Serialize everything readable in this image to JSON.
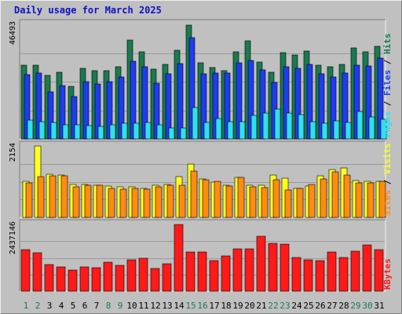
{
  "title": "Daily usage for March 2025",
  "colors": {
    "hits": "#1a7a50",
    "files": "#1e3cf0",
    "pages": "#30e0f0",
    "visits": "#ffff20",
    "sites": "#ff8c10",
    "kbytes": "#ff1a1a",
    "weekend_label": "#1a7a50",
    "weekday_label": "#000000"
  },
  "chart_data": [
    {
      "type": "bar",
      "categories": [
        "1",
        "2",
        "3",
        "4",
        "5",
        "6",
        "7",
        "8",
        "9",
        "10",
        "11",
        "12",
        "13",
        "14",
        "15",
        "16",
        "17",
        "18",
        "19",
        "20",
        "21",
        "22",
        "23",
        "24",
        "25",
        "26",
        "27",
        "28",
        "29",
        "30",
        "31"
      ],
      "weekend_days": [
        "1",
        "2",
        "8",
        "9",
        "15",
        "16",
        "22",
        "23",
        "29",
        "30"
      ],
      "ymax_label": "46493",
      "ylim": [
        0,
        46493
      ],
      "grid": true,
      "series": [
        {
          "name": "Hits",
          "values": [
            29800,
            29800,
            25900,
            27000,
            21200,
            28600,
            27800,
            27800,
            29200,
            40100,
            35500,
            28200,
            30400,
            36000,
            46300,
            30900,
            29000,
            27800,
            35300,
            39800,
            31300,
            27000,
            35100,
            34000,
            35800,
            30000,
            29200,
            30400,
            36800,
            35300,
            37500
          ]
        },
        {
          "name": "Files",
          "values": [
            26000,
            26700,
            19000,
            21800,
            17300,
            23200,
            22300,
            23200,
            25100,
            31600,
            29200,
            22600,
            26500,
            30600,
            41000,
            26500,
            26700,
            26700,
            30900,
            31900,
            27900,
            23000,
            29200,
            28600,
            30400,
            26500,
            25100,
            26700,
            30000,
            29700,
            32700
          ]
        },
        {
          "name": "Pages",
          "values": [
            7600,
            6900,
            6700,
            5600,
            5600,
            5300,
            5200,
            5600,
            6300,
            6300,
            6800,
            5800,
            4500,
            4500,
            12700,
            6800,
            8400,
            7100,
            7100,
            9400,
            10600,
            12000,
            10600,
            10000,
            7000,
            6500,
            7400,
            6800,
            11100,
            9000,
            8000
          ]
        }
      ]
    },
    {
      "type": "bar",
      "categories": [
        "1",
        "2",
        "3",
        "4",
        "5",
        "6",
        "7",
        "8",
        "9",
        "10",
        "11",
        "12",
        "13",
        "14",
        "15",
        "16",
        "17",
        "18",
        "19",
        "20",
        "21",
        "22",
        "23",
        "24",
        "25",
        "26",
        "27",
        "28",
        "29",
        "30",
        "31"
      ],
      "ymax_label": "2154",
      "ylim": [
        0,
        2154
      ],
      "grid": true,
      "series": [
        {
          "name": "Visits",
          "values": [
            1100,
            2154,
            1300,
            1280,
            990,
            1000,
            980,
            950,
            930,
            920,
            870,
            970,
            990,
            1220,
            1600,
            1150,
            1060,
            980,
            1210,
            980,
            980,
            1290,
            1190,
            880,
            950,
            1260,
            1450,
            1480,
            1120,
            1080,
            1080
          ]
        },
        {
          "name": "Sites",
          "values": [
            1040,
            1230,
            1260,
            1250,
            920,
            960,
            960,
            880,
            860,
            880,
            850,
            930,
            960,
            980,
            1400,
            1130,
            1080,
            950,
            1200,
            930,
            900,
            1130,
            820,
            880,
            1000,
            1160,
            1370,
            1290,
            1050,
            1030,
            1090
          ]
        }
      ]
    },
    {
      "type": "bar",
      "categories": [
        "1",
        "2",
        "3",
        "4",
        "5",
        "6",
        "7",
        "8",
        "9",
        "10",
        "11",
        "12",
        "13",
        "14",
        "15",
        "16",
        "17",
        "18",
        "19",
        "20",
        "21",
        "22",
        "23",
        "24",
        "25",
        "26",
        "27",
        "28",
        "29",
        "30",
        "31"
      ],
      "ymax_label": "2437146",
      "ylim": [
        0,
        2437146
      ],
      "grid": true,
      "series": [
        {
          "name": "KBytes",
          "values": [
            1520000,
            1400000,
            980000,
            890000,
            760000,
            880000,
            860000,
            1060000,
            940000,
            1160000,
            1200000,
            820000,
            1010000,
            2437146,
            1430000,
            1430000,
            1110000,
            1280000,
            1540000,
            1540000,
            2000000,
            1760000,
            1720000,
            1240000,
            1150000,
            1110000,
            1430000,
            1240000,
            1450000,
            1690000,
            1510000
          ]
        }
      ]
    }
  ],
  "side_labels": {
    "top": [
      "Pages",
      "Files",
      "Hits"
    ],
    "middle": [
      "Sites",
      "Visits"
    ],
    "bottom": [
      "KBytes"
    ],
    "sep": " / "
  }
}
